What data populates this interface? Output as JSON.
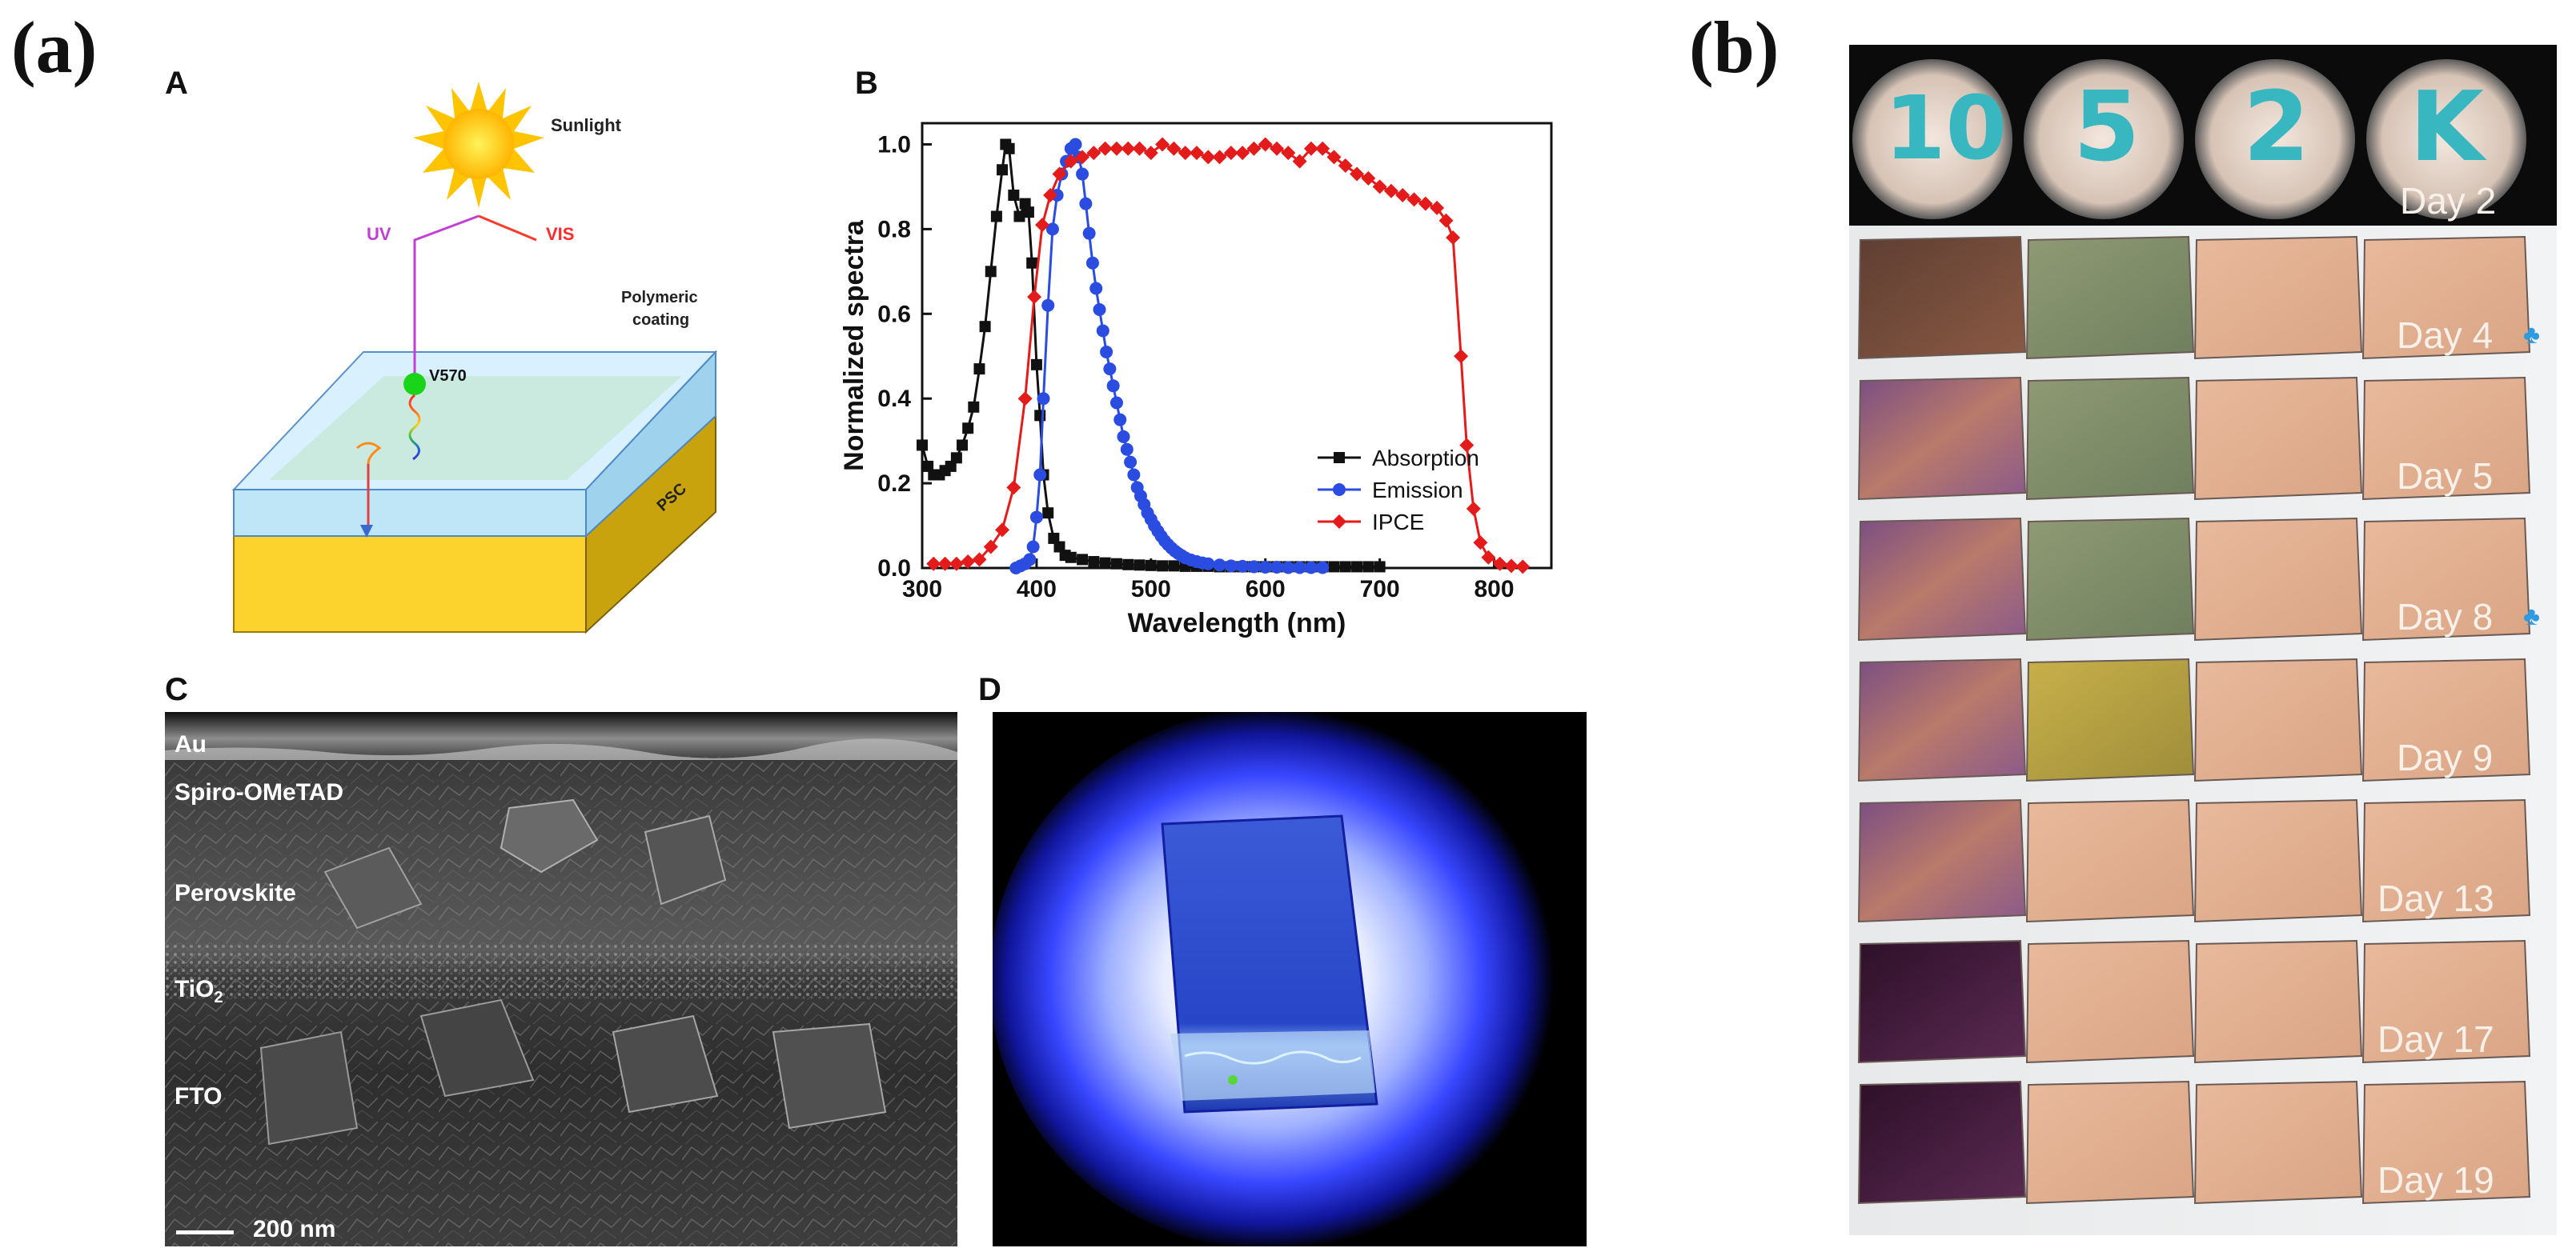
{
  "figure_labels": {
    "a": "(a)",
    "b": "(b)"
  },
  "panelA": {
    "letter": "A",
    "sunlight": "Sunlight",
    "uv": "UV",
    "vis": "VIS",
    "v570": "V570",
    "coating": [
      "Polymeric",
      "coating"
    ],
    "psc": "PSC"
  },
  "panelB_chart": {
    "letter": "B",
    "chart_data": {
      "type": "line",
      "title": "",
      "xlabel": "Wavelength (nm)",
      "ylabel": "Normalized spectra",
      "xlim": [
        300,
        850
      ],
      "ylim": [
        0,
        1.05
      ],
      "xticks": [
        "300",
        "400",
        "500",
        "600",
        "700",
        "800"
      ],
      "yticks": [
        "0.0",
        "0.2",
        "0.4",
        "0.6",
        "0.8",
        "1.0"
      ],
      "legend_position": "lower-right",
      "series": [
        {
          "name": "Absorption",
          "color": "#111111",
          "marker": "square",
          "points": [
            [
              300,
              0.29
            ],
            [
              305,
              0.24
            ],
            [
              310,
              0.22
            ],
            [
              315,
              0.22
            ],
            [
              320,
              0.23
            ],
            [
              325,
              0.24
            ],
            [
              330,
              0.26
            ],
            [
              335,
              0.29
            ],
            [
              340,
              0.33
            ],
            [
              345,
              0.38
            ],
            [
              350,
              0.47
            ],
            [
              355,
              0.57
            ],
            [
              360,
              0.7
            ],
            [
              365,
              0.83
            ],
            [
              370,
              0.94
            ],
            [
              373,
              1.0
            ],
            [
              376,
              0.99
            ],
            [
              380,
              0.88
            ],
            [
              385,
              0.83
            ],
            [
              390,
              0.86
            ],
            [
              393,
              0.84
            ],
            [
              396,
              0.72
            ],
            [
              400,
              0.48
            ],
            [
              403,
              0.36
            ],
            [
              406,
              0.22
            ],
            [
              410,
              0.13
            ],
            [
              415,
              0.07
            ],
            [
              420,
              0.05
            ],
            [
              425,
              0.03
            ],
            [
              430,
              0.025
            ],
            [
              440,
              0.02
            ],
            [
              450,
              0.015
            ],
            [
              460,
              0.012
            ],
            [
              470,
              0.01
            ],
            [
              480,
              0.008
            ],
            [
              490,
              0.007
            ],
            [
              500,
              0.006
            ],
            [
              510,
              0.005
            ],
            [
              520,
              0.005
            ],
            [
              530,
              0.004
            ],
            [
              540,
              0.004
            ],
            [
              550,
              0.004
            ],
            [
              560,
              0.003
            ],
            [
              570,
              0.003
            ],
            [
              580,
              0.003
            ],
            [
              590,
              0.003
            ],
            [
              600,
              0.003
            ],
            [
              610,
              0.003
            ],
            [
              620,
              0.003
            ],
            [
              630,
              0.003
            ],
            [
              640,
              0.003
            ],
            [
              650,
              0.003
            ],
            [
              660,
              0.003
            ],
            [
              670,
              0.003
            ],
            [
              680,
              0.003
            ],
            [
              690,
              0.003
            ],
            [
              700,
              0.003
            ]
          ]
        },
        {
          "name": "Emission",
          "color": "#2a4ce0",
          "marker": "circle",
          "points": [
            [
              382,
              0.0
            ],
            [
              386,
              0.005
            ],
            [
              390,
              0.01
            ],
            [
              394,
              0.02
            ],
            [
              397,
              0.05
            ],
            [
              400,
              0.12
            ],
            [
              403,
              0.22
            ],
            [
              406,
              0.4
            ],
            [
              410,
              0.62
            ],
            [
              414,
              0.8
            ],
            [
              418,
              0.88
            ],
            [
              422,
              0.93
            ],
            [
              426,
              0.96
            ],
            [
              430,
              0.99
            ],
            [
              434,
              1.0
            ],
            [
              437,
              0.97
            ],
            [
              440,
              0.93
            ],
            [
              443,
              0.86
            ],
            [
              446,
              0.79
            ],
            [
              449,
              0.72
            ],
            [
              452,
              0.66
            ],
            [
              455,
              0.61
            ],
            [
              458,
              0.56
            ],
            [
              461,
              0.51
            ],
            [
              464,
              0.47
            ],
            [
              467,
              0.43
            ],
            [
              470,
              0.39
            ],
            [
              473,
              0.35
            ],
            [
              476,
              0.31
            ],
            [
              479,
              0.28
            ],
            [
              482,
              0.25
            ],
            [
              485,
              0.22
            ],
            [
              488,
              0.19
            ],
            [
              491,
              0.17
            ],
            [
              494,
              0.15
            ],
            [
              497,
              0.13
            ],
            [
              500,
              0.115
            ],
            [
              503,
              0.1
            ],
            [
              506,
              0.087
            ],
            [
              509,
              0.075
            ],
            [
              512,
              0.064
            ],
            [
              515,
              0.055
            ],
            [
              518,
              0.047
            ],
            [
              521,
              0.04
            ],
            [
              524,
              0.034
            ],
            [
              527,
              0.029
            ],
            [
              530,
              0.024
            ],
            [
              535,
              0.019
            ],
            [
              540,
              0.015
            ],
            [
              545,
              0.012
            ],
            [
              550,
              0.01
            ],
            [
              560,
              0.007
            ],
            [
              570,
              0.005
            ],
            [
              580,
              0.004
            ],
            [
              590,
              0.003
            ],
            [
              600,
              0.002
            ],
            [
              610,
              0.002
            ],
            [
              620,
              0.001
            ],
            [
              630,
              0.001
            ],
            [
              640,
              0.001
            ],
            [
              650,
              0.001
            ]
          ]
        },
        {
          "name": "IPCE",
          "color": "#e41b1b",
          "marker": "diamond",
          "points": [
            [
              310,
              0.01
            ],
            [
              320,
              0.01
            ],
            [
              330,
              0.01
            ],
            [
              340,
              0.015
            ],
            [
              350,
              0.02
            ],
            [
              360,
              0.05
            ],
            [
              370,
              0.09
            ],
            [
              380,
              0.19
            ],
            [
              390,
              0.4
            ],
            [
              398,
              0.64
            ],
            [
              405,
              0.81
            ],
            [
              412,
              0.88
            ],
            [
              420,
              0.93
            ],
            [
              430,
              0.96
            ],
            [
              440,
              0.97
            ],
            [
              450,
              0.98
            ],
            [
              460,
              0.99
            ],
            [
              470,
              0.99
            ],
            [
              480,
              0.99
            ],
            [
              490,
              0.99
            ],
            [
              500,
              0.98
            ],
            [
              510,
              1.0
            ],
            [
              520,
              0.99
            ],
            [
              530,
              0.98
            ],
            [
              540,
              0.98
            ],
            [
              550,
              0.97
            ],
            [
              560,
              0.97
            ],
            [
              570,
              0.98
            ],
            [
              580,
              0.98
            ],
            [
              590,
              0.99
            ],
            [
              600,
              1.0
            ],
            [
              610,
              0.99
            ],
            [
              620,
              0.98
            ],
            [
              630,
              0.96
            ],
            [
              640,
              0.99
            ],
            [
              650,
              0.99
            ],
            [
              660,
              0.97
            ],
            [
              670,
              0.95
            ],
            [
              680,
              0.93
            ],
            [
              690,
              0.92
            ],
            [
              700,
              0.9
            ],
            [
              710,
              0.89
            ],
            [
              720,
              0.88
            ],
            [
              730,
              0.87
            ],
            [
              740,
              0.86
            ],
            [
              750,
              0.85
            ],
            [
              758,
              0.82
            ],
            [
              764,
              0.78
            ],
            [
              771,
              0.5
            ],
            [
              776,
              0.29
            ],
            [
              782,
              0.14
            ],
            [
              788,
              0.06
            ],
            [
              795,
              0.025
            ],
            [
              805,
              0.01
            ],
            [
              815,
              0.005
            ],
            [
              825,
              0.003
            ]
          ]
        }
      ]
    }
  },
  "panelC": {
    "letter": "C",
    "layers": [
      "Au",
      "Spiro-OMeTAD",
      "Perovskite",
      "TiO",
      "FTO"
    ],
    "tio_sub": "2",
    "scalebar": "200 nm"
  },
  "panelD": {
    "letter": "D"
  },
  "panelB_photos": {
    "top_label": "Day 2",
    "top_samples": [
      "10",
      "5",
      "2",
      "K"
    ],
    "rows": [
      {
        "label": "Day 4",
        "mark": true
      },
      {
        "label": "Day 5",
        "mark": false
      },
      {
        "label": "Day 8",
        "mark": true
      },
      {
        "label": "Day 9",
        "mark": false
      },
      {
        "label": "Day 13",
        "mark": false
      },
      {
        "label": "Day 17",
        "mark": false
      },
      {
        "label": "Day 19",
        "mark": false
      }
    ],
    "mark_icon": "blue-splash-icon",
    "mark_glyph": "♣"
  }
}
